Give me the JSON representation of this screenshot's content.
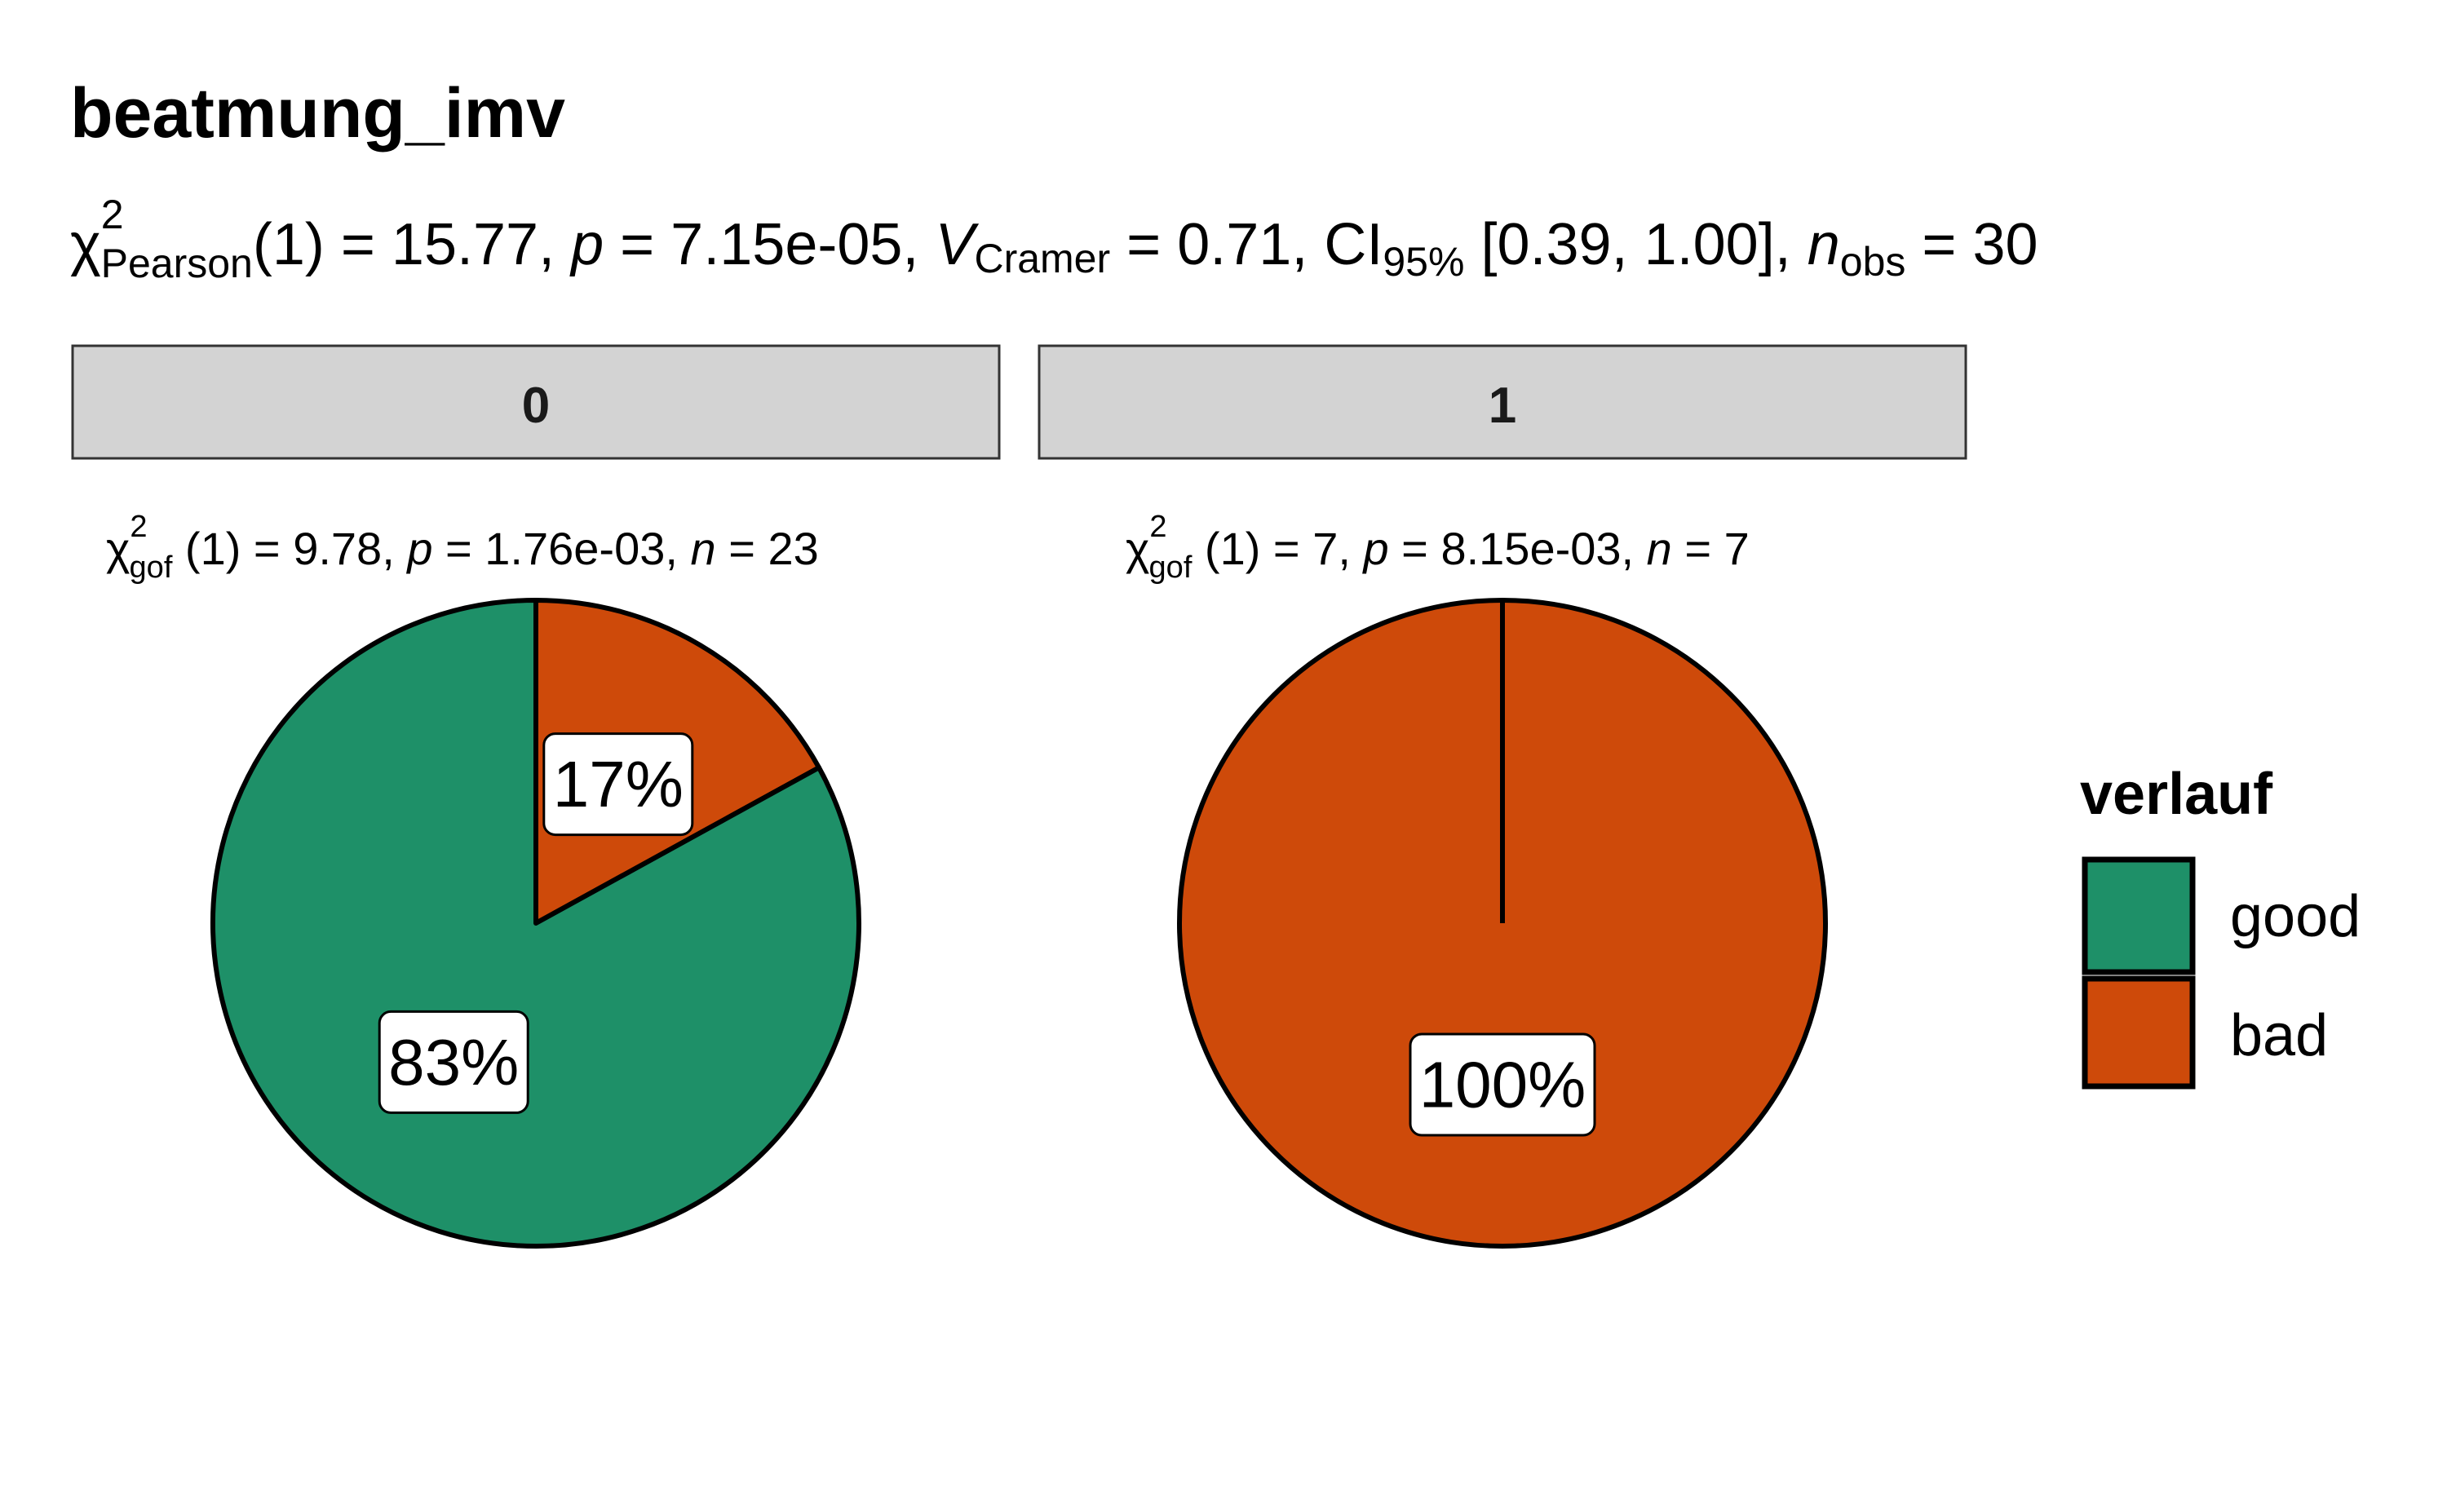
{
  "chart_data": {
    "type": "pie",
    "title": "beatmung_imv",
    "subtitle": {
      "chi": "χ",
      "chi_sup": "2",
      "chi_sub": "Pearson",
      "stat": "(1) = 15.77, ",
      "p": "p",
      "p_val": " = 7.15e-05, ",
      "v": "V",
      "v_sub": "Cramer",
      "v_val": " = 0.71, CI",
      "ci_sub": "95%",
      "ci_val": " [0.39, 1.00], ",
      "n": "n",
      "n_sub": "obs",
      "n_val": " = 30"
    },
    "legend": {
      "title": "verlauf",
      "position": "right",
      "entries": [
        {
          "label": "good",
          "color": "#1E9068"
        },
        {
          "label": "bad",
          "color": "#CE4A0A"
        }
      ]
    },
    "facets": [
      {
        "strip": "0",
        "caption": {
          "chi": "χ",
          "sup": "2",
          "sub": "gof",
          "stat": " (1) = 9.78,  ",
          "p": "p",
          "p_val": " = 1.76e-03,  ",
          "n": "n",
          "n_val": " = 23"
        },
        "slices": [
          {
            "category": "bad",
            "percent": 17,
            "label": "17%"
          },
          {
            "category": "good",
            "percent": 83,
            "label": "83%"
          }
        ]
      },
      {
        "strip": "1",
        "caption": {
          "chi": "χ",
          "sup": "2",
          "sub": "gof",
          "stat": " (1) = 7,  ",
          "p": "p",
          "p_val": " = 8.15e-03,  ",
          "n": "n",
          "n_val": " = 7"
        },
        "slices": [
          {
            "category": "bad",
            "percent": 100,
            "label": "100%"
          }
        ]
      }
    ]
  }
}
